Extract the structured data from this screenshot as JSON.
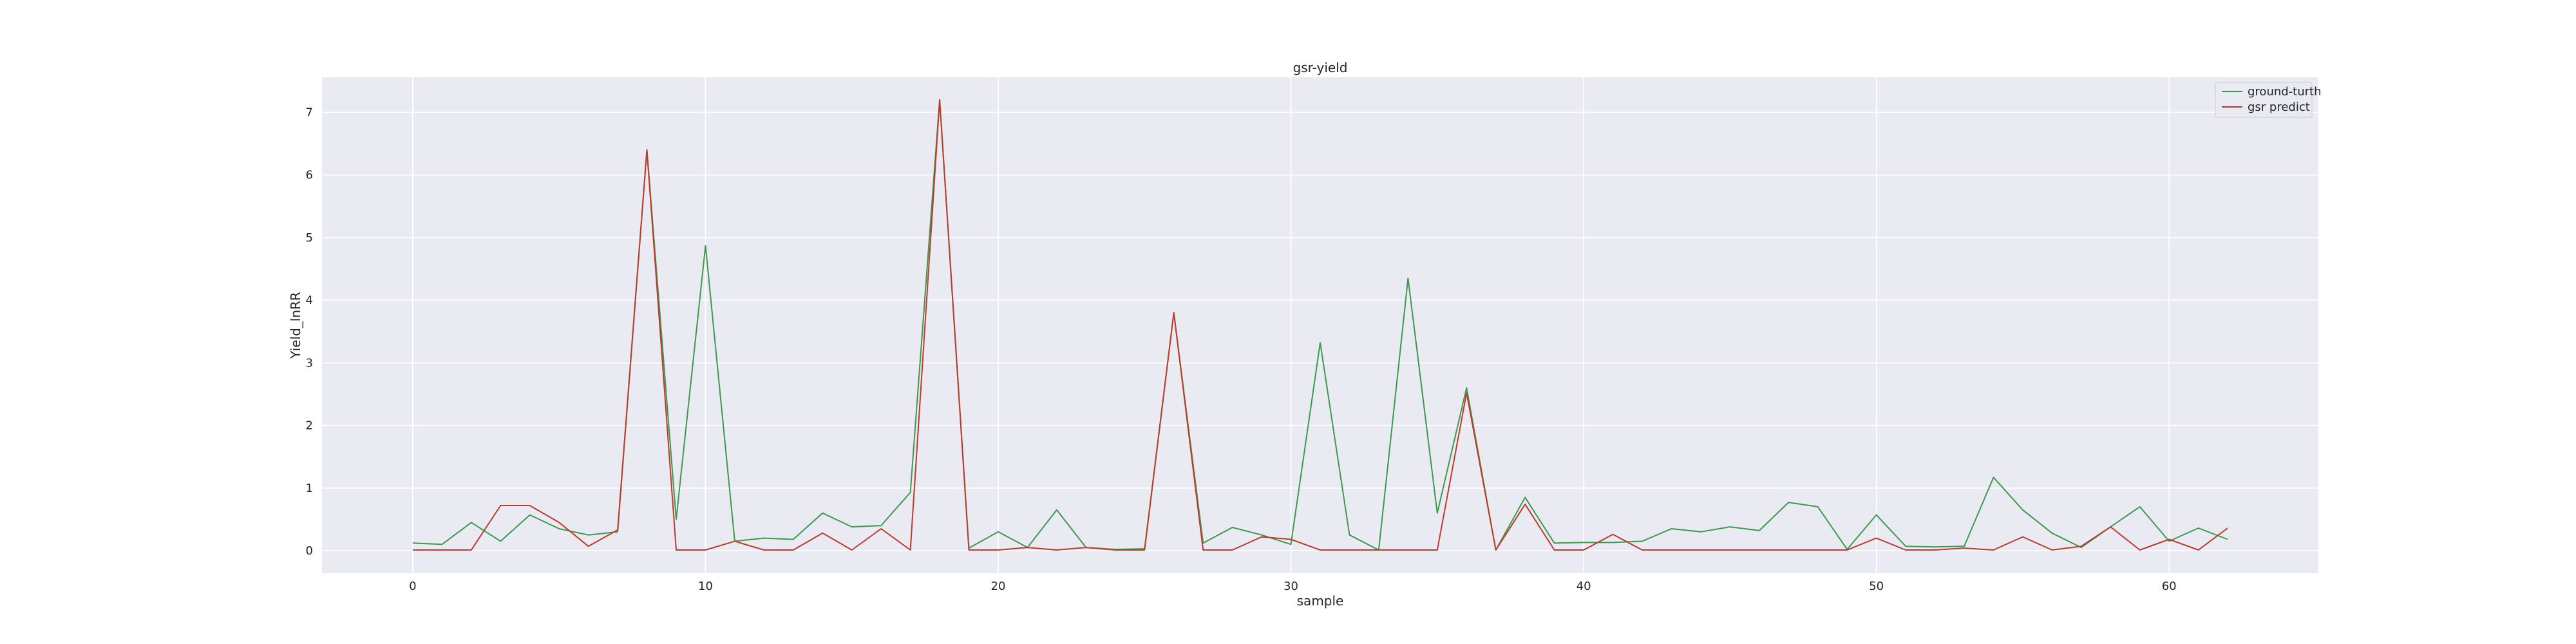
{
  "chart_data": {
    "type": "line",
    "title": "gsr-yield",
    "xlabel": "sample",
    "ylabel": "Yield_lnRR",
    "xlim": [
      -3.1,
      65.1
    ],
    "ylim": [
      -0.36,
      7.56
    ],
    "xticks": [
      0,
      10,
      20,
      30,
      40,
      50,
      60
    ],
    "yticks": [
      0,
      1,
      2,
      3,
      4,
      5,
      6,
      7
    ],
    "grid": true,
    "legend_position": "top-right",
    "x": [
      0,
      1,
      2,
      3,
      4,
      5,
      6,
      7,
      8,
      9,
      10,
      11,
      12,
      13,
      14,
      15,
      16,
      17,
      18,
      19,
      20,
      21,
      22,
      23,
      24,
      25,
      26,
      27,
      28,
      29,
      30,
      31,
      32,
      33,
      34,
      35,
      36,
      37,
      38,
      39,
      40,
      41,
      42,
      43,
      44,
      45,
      46,
      47,
      48,
      49,
      50,
      51,
      52,
      53,
      54,
      55,
      56,
      57,
      58,
      59,
      60,
      61,
      62
    ],
    "series": [
      {
        "name": "ground-turth",
        "color": "#3a9a4e",
        "values": [
          0.12,
          0.1,
          0.45,
          0.15,
          0.57,
          0.35,
          0.25,
          0.3,
          6.4,
          0.5,
          4.87,
          0.15,
          0.2,
          0.18,
          0.6,
          0.38,
          0.4,
          0.93,
          7.2,
          0.04,
          0.3,
          0.05,
          0.65,
          0.05,
          0.02,
          0.03,
          3.8,
          0.12,
          0.37,
          0.25,
          0.1,
          3.32,
          0.25,
          0.01,
          4.35,
          0.6,
          2.6,
          0.01,
          0.85,
          0.12,
          0.13,
          0.13,
          0.15,
          0.35,
          0.3,
          0.38,
          0.32,
          0.77,
          0.7,
          0.02,
          0.57,
          0.07,
          0.06,
          0.07,
          1.17,
          0.65,
          0.28,
          0.05,
          0.38,
          0.7,
          0.15,
          0.36,
          0.18
        ]
      },
      {
        "name": "gsr predict",
        "color": "#c0392b",
        "values": [
          0.01,
          0.01,
          0.01,
          0.72,
          0.72,
          0.45,
          0.07,
          0.33,
          6.4,
          0.01,
          0.01,
          0.15,
          0.01,
          0.01,
          0.28,
          0.01,
          0.35,
          0.01,
          7.2,
          0.01,
          0.01,
          0.05,
          0.01,
          0.05,
          0.01,
          0.01,
          3.8,
          0.01,
          0.01,
          0.22,
          0.18,
          0.01,
          0.01,
          0.01,
          0.01,
          0.01,
          2.52,
          0.01,
          0.74,
          0.01,
          0.01,
          0.26,
          0.01,
          0.01,
          0.01,
          0.01,
          0.01,
          0.01,
          0.01,
          0.01,
          0.2,
          0.01,
          0.01,
          0.04,
          0.01,
          0.22,
          0.01,
          0.07,
          0.38,
          0.01,
          0.18,
          0.01,
          0.36
        ]
      }
    ]
  }
}
